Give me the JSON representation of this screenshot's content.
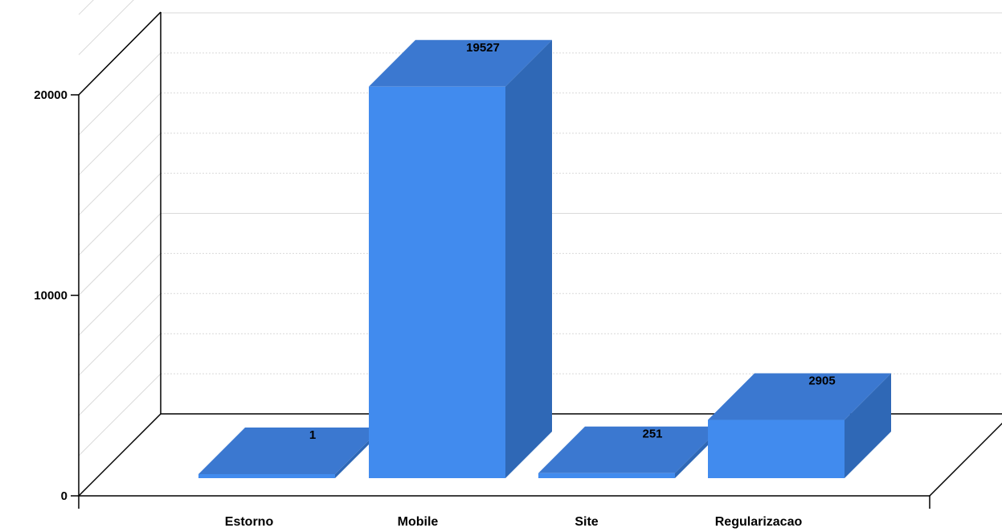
{
  "chart_data": {
    "type": "bar",
    "style": "3d",
    "categories": [
      "Estorno",
      "Mobile",
      "Site",
      "Regularizacao"
    ],
    "values": [
      1,
      19527,
      251,
      2905
    ],
    "data_labels": [
      "1",
      "19527",
      "251",
      "2905"
    ],
    "y_ticks": [
      0,
      10000,
      20000
    ],
    "y_tick_labels": [
      "0",
      "10000",
      "20000"
    ],
    "ylim": [
      0,
      20000
    ],
    "title": "",
    "xlabel": "",
    "ylabel": "",
    "grid": true,
    "colors": {
      "front": "#418bee",
      "top": "#3b78d0",
      "side": "#2f68b6",
      "grid": "#d9d9d9",
      "axis": "#000000"
    }
  }
}
